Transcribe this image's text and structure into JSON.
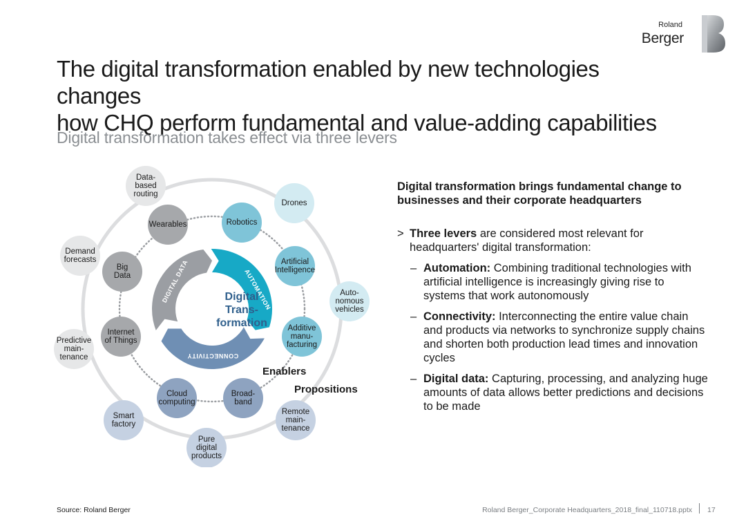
{
  "logo": {
    "small": "Roland",
    "big": "Berger"
  },
  "title": {
    "line1": "The digital transformation enabled by new technologies changes",
    "line2": "how CHQ perform fundamental and value-adding capabilities"
  },
  "subtitle": "Digital transformation takes effect via three levers",
  "diagram": {
    "center": "Digital\nTrans-\nformation",
    "levers": [
      "DIGITAL DATA",
      "AUTOMATION",
      "CONNECTIVITY"
    ],
    "enablers_label": "Enablers",
    "propositions_label": "Propositions",
    "enablers": [
      {
        "label": "Robotics",
        "color": "#7fc4d8"
      },
      {
        "label": "Artificial\nIntelligence",
        "color": "#7fc4d8"
      },
      {
        "label": "Additive\nmanu-\nfacturing",
        "color": "#7fc4d8"
      },
      {
        "label": "Broad-\nband",
        "color": "#8ea3c0"
      },
      {
        "label": "Cloud\ncomputing",
        "color": "#8ea3c0"
      },
      {
        "label": "Internet\nof Things",
        "color": "#a6a8ab"
      },
      {
        "label": "Big\nData",
        "color": "#a6a8ab"
      },
      {
        "label": "Wearables",
        "color": "#a6a8ab"
      }
    ],
    "propositions": [
      {
        "label": "Data-\nbased\nrouting",
        "color": "#e6e7e8"
      },
      {
        "label": "Drones",
        "color": "#d3ebf2"
      },
      {
        "label": "Auto-\nnomous\nvehicles",
        "color": "#d3ebf2"
      },
      {
        "label": "Remote\nmain-\ntenance",
        "color": "#c5d1e2"
      },
      {
        "label": "Pure\ndigital\nproducts",
        "color": "#c5d1e2"
      },
      {
        "label": "Smart\nfactory",
        "color": "#c5d1e2"
      },
      {
        "label": "Predictive\nmain-\ntenance",
        "color": "#e6e7e8"
      },
      {
        "label": "Demand\nforecasts",
        "color": "#e6e7e8"
      }
    ]
  },
  "right": {
    "heading": "Digital transformation brings fundamental change to\nbusinesses and their corporate headquarters",
    "bullet_mark": ">",
    "bullet_bold": "Three levers",
    "bullet_text": " are considered most relevant for headquarters' digital transformation:",
    "sub_mark": "–",
    "items": [
      {
        "bold": "Automation:",
        "text": " Combining traditional technologies with artificial intelligence is increasingly giving rise to systems that work autonomously"
      },
      {
        "bold": "Connectivity:",
        "text": " Interconnecting the entire value chain and products via networks to synchronize supply chains and shorten both production lead times and innovation cycles"
      },
      {
        "bold": "Digital data:",
        "text": " Capturing, processing, and analyzing huge amounts of data allows better predictions and decisions to be made"
      }
    ]
  },
  "footer": {
    "source": "Source: Roland Berger",
    "file": "Roland Berger_Corporate Headquarters_2018_final_110718.pptx",
    "page": "17"
  }
}
